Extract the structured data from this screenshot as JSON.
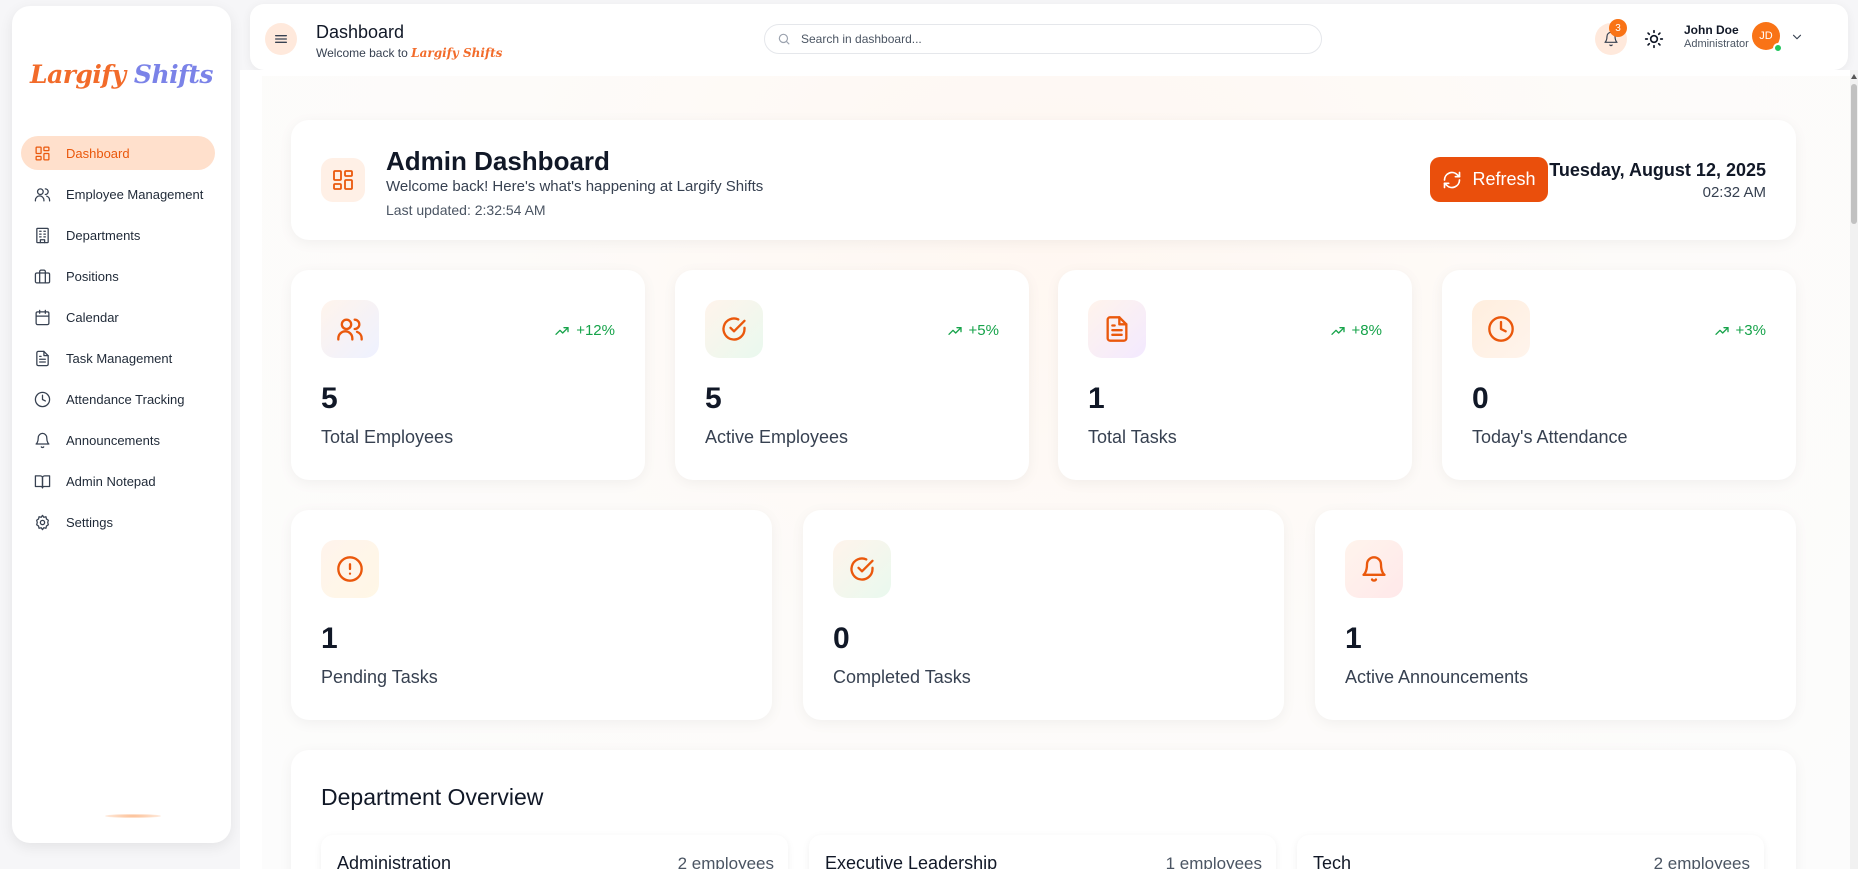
{
  "sidebar": {
    "logo_part1": "Largify ",
    "logo_part2": "Shifts",
    "items": [
      {
        "label": "Dashboard",
        "icon": "dashboard-icon"
      },
      {
        "label": "Employee Management",
        "icon": "users-icon"
      },
      {
        "label": "Departments",
        "icon": "building-icon"
      },
      {
        "label": "Positions",
        "icon": "briefcase-icon"
      },
      {
        "label": "Calendar",
        "icon": "calendar-icon"
      },
      {
        "label": "Task Management",
        "icon": "file-text-icon"
      },
      {
        "label": "Attendance Tracking",
        "icon": "clock-icon"
      },
      {
        "label": "Announcements",
        "icon": "bell-icon"
      },
      {
        "label": "Admin Notepad",
        "icon": "book-icon"
      },
      {
        "label": "Settings",
        "icon": "gear-icon"
      }
    ]
  },
  "header": {
    "title": "Dashboard",
    "subtitle_prefix": "Welcome back to ",
    "subtitle_brand": "Largify Shifts",
    "search_placeholder": "Search in dashboard...",
    "notification_count": "3",
    "user_name": "John Doe",
    "user_role": "Administrator",
    "user_initials": "JD"
  },
  "welcome": {
    "title": "Admin Dashboard",
    "subtitle": "Welcome back! Here's what's happening at Largify Shifts",
    "last_updated": "Last updated: 2:32:54 AM",
    "refresh_label": "Refresh",
    "date": "Tuesday, August 12, 2025",
    "time": "02:32 AM"
  },
  "stats_top": [
    {
      "value": "5",
      "label": "Total Employees",
      "trend": "+12%",
      "icon": "users-icon"
    },
    {
      "value": "5",
      "label": "Active Employees",
      "trend": "+5%",
      "icon": "check-circle-icon"
    },
    {
      "value": "1",
      "label": "Total Tasks",
      "trend": "+8%",
      "icon": "file-text-icon"
    },
    {
      "value": "0",
      "label": "Today's Attendance",
      "trend": "+3%",
      "icon": "clock-icon"
    }
  ],
  "stats_bottom": [
    {
      "value": "1",
      "label": "Pending Tasks",
      "icon": "alert-circle-icon"
    },
    {
      "value": "0",
      "label": "Completed Tasks",
      "icon": "check-circle-icon"
    },
    {
      "value": "1",
      "label": "Active Announcements",
      "icon": "bell-icon"
    }
  ],
  "departments": {
    "title": "Department Overview",
    "items": [
      {
        "name": "Administration",
        "count": "2 employees"
      },
      {
        "name": "Executive Leadership",
        "count": "1 employees"
      },
      {
        "name": "Tech",
        "count": "2 employees"
      }
    ]
  },
  "colors": {
    "accent": "#ea580c",
    "accent_soft": "#ffe0cc",
    "trend_up": "#16a34a"
  }
}
